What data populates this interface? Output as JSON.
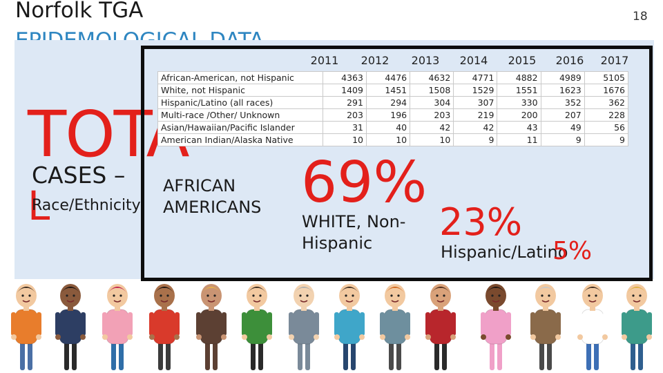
{
  "header": {
    "title": "Norfolk TGA",
    "subtitle": "EPIDEMOLOGICAL DATA",
    "page_number": "18"
  },
  "table": {
    "years": [
      "2011",
      "2012",
      "2013",
      "2014",
      "2015",
      "2016",
      "2017"
    ],
    "rows": [
      {
        "label": "African-American, not Hispanic",
        "values": [
          "4363",
          "4476",
          "4632",
          "4771",
          "4882",
          "4989",
          "5105"
        ]
      },
      {
        "label": "White, not Hispanic",
        "values": [
          "1409",
          "1451",
          "1508",
          "1529",
          "1551",
          "1623",
          "1676"
        ]
      },
      {
        "label": "Hispanic/Latino (all races)",
        "values": [
          "291",
          "294",
          "304",
          "307",
          "330",
          "352",
          "362"
        ]
      },
      {
        "label": "Multi-race /Other/ Unknown",
        "values": [
          "203",
          "196",
          "203",
          "219",
          "200",
          "207",
          "228"
        ]
      },
      {
        "label": "Asian/Hawaiian/Pacific Islander",
        "values": [
          "31",
          "40",
          "42",
          "42",
          "43",
          "49",
          "56"
        ]
      },
      {
        "label": "American Indian/Alaska Native",
        "values": [
          "10",
          "10",
          "10",
          "9",
          "11",
          "9",
          "9"
        ]
      }
    ]
  },
  "left_block": {
    "big_word_top": "TOTA",
    "big_word_bottom": "L",
    "cases_label": "CASES –",
    "race_label": "Race/Ethnicity"
  },
  "stats": {
    "african_american_label": "AFRICAN AMERICANS",
    "white_percent": "69%",
    "white_label": "WHITE, Non-Hispanic",
    "hispanic_percent": "23%",
    "hispanic_label": "Hispanic/Latino",
    "other_percent": "5%"
  },
  "colors": {
    "accent_red": "#e3201b",
    "title_blue": "#2e86c1",
    "panel_bg": "#dde8f5",
    "frame": "#0d0d0d"
  },
  "illustration": {
    "icon": "diverse-people-group-icon"
  }
}
